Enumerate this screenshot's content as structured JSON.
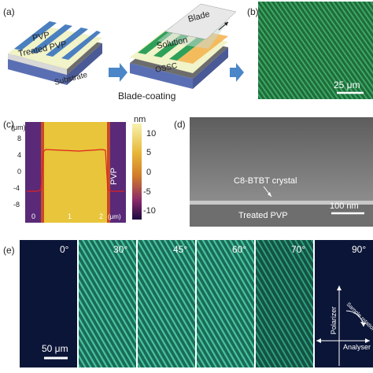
{
  "panels": {
    "a": {
      "label": "(a)",
      "layers": [
        "PVP",
        "Treated PVP",
        "Substrate"
      ],
      "right": {
        "blade": "Blade",
        "solution": "Solution",
        "osc": "OSSC"
      },
      "caption": "Blade-coating"
    },
    "b": {
      "label": "(b)",
      "scale": "25 μm"
    },
    "c": {
      "label": "(c)",
      "y_unit": "(μm)",
      "x_unit": "(μm)",
      "side_label": "PVP",
      "y_ticks": [
        "8",
        "4",
        "0",
        "-4",
        "-8"
      ],
      "x_ticks": [
        "0",
        "1",
        "2"
      ],
      "colorbar_unit": "nm",
      "colorbar_ticks": [
        "10",
        "5",
        "0",
        "-5",
        "-10"
      ]
    },
    "d": {
      "label": "(d)",
      "crystal_label": "C8-BTBT crystal",
      "substrate_label": "Treated PVP",
      "scale": "100 nm"
    },
    "e": {
      "label": "(e)",
      "angles": [
        "0°",
        "30°",
        "45°",
        "60°",
        "70°",
        "90°"
      ],
      "scale": "50 μm",
      "polarizer": "Polarizer",
      "analyser": "Analyser",
      "rotation": "Sample rotation"
    }
  },
  "colors": {
    "dark_navy": "#0b1538",
    "green": "#2aa868",
    "afm_yellow": "#e8c53a",
    "afm_purple": "#5a1e6e",
    "sem_gray": "#8a8a8a",
    "arrow_blue": "#4a86c8"
  }
}
